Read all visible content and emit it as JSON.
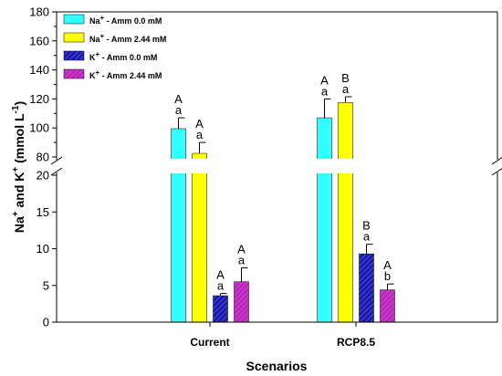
{
  "chart_data": {
    "type": "bar",
    "xlabel": "Scenarios",
    "ylabel": "Na+ and K+ (mmol L-1)",
    "categories": [
      "Current",
      "RCP8.5"
    ],
    "y_axis_break": {
      "lower_range": [
        0,
        20
      ],
      "upper_range": [
        80,
        180
      ]
    },
    "lower_ticks": [
      0,
      5,
      10,
      15,
      20
    ],
    "upper_ticks": [
      80,
      100,
      120,
      140,
      160,
      180
    ],
    "series": [
      {
        "name": "Na+ - Amm 0.0 mM",
        "color": "#33ffff",
        "pattern": "solid",
        "values": [
          99.5,
          107
        ],
        "errors": [
          7.5,
          13
        ],
        "labels": [
          [
            "A",
            "a"
          ],
          [
            "A",
            "a"
          ]
        ]
      },
      {
        "name": "Na+ - Amm 2.44 mM",
        "color": "#ffff00",
        "pattern": "solid",
        "values": [
          82.5,
          117.5
        ],
        "errors": [
          7.5,
          4
        ],
        "labels": [
          [
            "A",
            "a"
          ],
          [
            "B",
            "a"
          ]
        ]
      },
      {
        "name": "K+ - Amm 0.0 mM",
        "color": "#1a1aa6",
        "pattern": "hatch",
        "values": [
          3.6,
          9.3
        ],
        "errors": [
          0.3,
          1.3
        ],
        "labels": [
          [
            "A",
            "a"
          ],
          [
            "B",
            "a"
          ]
        ]
      },
      {
        "name": "K+ - Amm 2.44 mM",
        "color": "#cc33cc",
        "pattern": "hatch",
        "values": [
          5.5,
          4.4
        ],
        "errors": [
          1.9,
          0.8
        ],
        "labels": [
          [
            "A",
            "a"
          ],
          [
            "A",
            "b"
          ]
        ]
      }
    ]
  }
}
